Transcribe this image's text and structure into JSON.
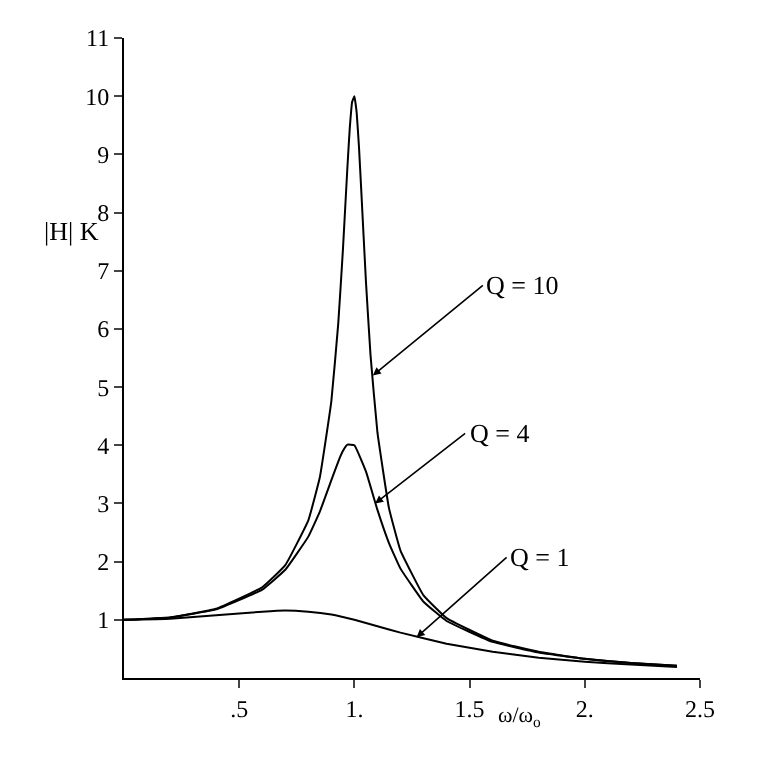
{
  "chart_data": {
    "type": "line",
    "xlabel": "ω/ω$_{o}$",
    "ylabel": "|H| K",
    "series": [
      {
        "color": "#000000",
        "x": [
          0,
          0.2,
          0.4,
          0.6,
          0.7,
          0.8,
          0.85,
          0.9,
          0.93,
          0.95,
          0.97,
          0.98,
          0.99,
          1.0,
          1.01,
          1.02,
          1.03,
          1.05,
          1.07,
          1.1,
          1.15,
          1.2,
          1.3,
          1.4,
          1.6,
          1.8,
          2.0,
          2.2,
          2.4
        ],
        "values": [
          1.0,
          1.04,
          1.19,
          1.56,
          1.94,
          2.71,
          3.45,
          4.76,
          6.1,
          7.35,
          8.8,
          9.46,
          9.9,
          10.0,
          9.71,
          9.12,
          8.36,
          6.82,
          5.55,
          4.22,
          2.92,
          2.19,
          1.42,
          1.03,
          0.64,
          0.45,
          0.33,
          0.26,
          0.21
        ]
      },
      {
        "color": "#000000",
        "x": [
          0,
          0.2,
          0.4,
          0.6,
          0.7,
          0.8,
          0.85,
          0.9,
          0.93,
          0.95,
          0.97,
          1.0,
          1.05,
          1.1,
          1.15,
          1.2,
          1.3,
          1.4,
          1.6,
          1.8,
          2.0,
          2.2,
          2.4
        ],
        "values": [
          1.0,
          1.04,
          1.18,
          1.52,
          1.86,
          2.43,
          2.86,
          3.4,
          3.72,
          3.9,
          4.01,
          4.0,
          3.55,
          2.89,
          2.32,
          1.88,
          1.31,
          0.98,
          0.62,
          0.44,
          0.33,
          0.26,
          0.21
        ]
      },
      {
        "color": "#000000",
        "x": [
          0,
          0.2,
          0.4,
          0.6,
          0.7,
          0.8,
          0.9,
          1.0,
          1.1,
          1.2,
          1.4,
          1.6,
          1.8,
          2.0,
          2.2,
          2.4
        ],
        "values": [
          1.0,
          1.02,
          1.08,
          1.14,
          1.16,
          1.14,
          1.09,
          1.0,
          0.89,
          0.78,
          0.59,
          0.45,
          0.35,
          0.28,
          0.23,
          0.19
        ]
      }
    ],
    "annotations": [
      {
        "text": "Q = 10",
        "x": 1.08,
        "y": 5.2
      },
      {
        "text": "Q = 4",
        "x": 1.09,
        "y": 3.0
      },
      {
        "text": "Q = 1",
        "x": 1.27,
        "y": 0.7
      }
    ],
    "xlim": [
      0,
      2.5
    ],
    "ylim": [
      0,
      11
    ],
    "xticks": [
      {
        "value": 0.5,
        "label": ".5"
      },
      {
        "value": 1,
        "label": "1."
      },
      1.5,
      {
        "value": 2,
        "label": "2."
      },
      2.5
    ],
    "yticks": [
      1,
      2,
      3,
      4,
      5,
      6,
      7,
      8,
      9,
      10,
      11
    ],
    "marker": "none",
    "line_style": "solid"
  }
}
